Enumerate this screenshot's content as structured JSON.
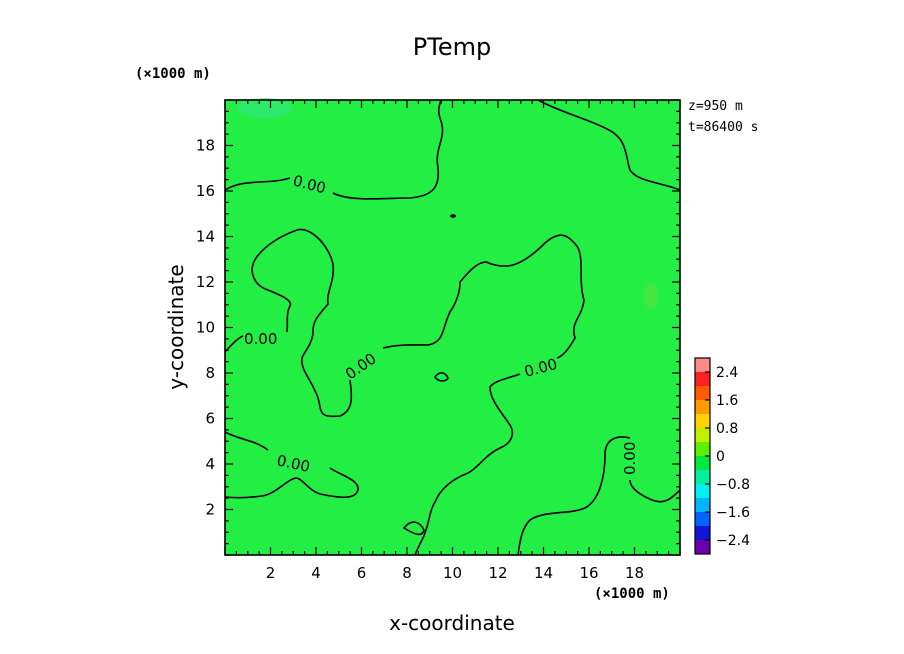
{
  "chart_data": {
    "type": "heatmap",
    "title": "PTemp",
    "xlabel": "x-coordinate",
    "ylabel": "y-coordinate",
    "x_unit": "(×1000 m)",
    "y_unit": "(×1000 m)",
    "xlim": [
      0,
      20
    ],
    "ylim": [
      0,
      20
    ],
    "x_ticks": [
      2,
      4,
      6,
      8,
      10,
      12,
      14,
      16,
      18
    ],
    "y_ticks": [
      2,
      4,
      6,
      8,
      10,
      12,
      14,
      16,
      18
    ],
    "info": [
      "z=950 m",
      "t=86400 s"
    ],
    "contour_level": 0.0,
    "contour_labels": [
      "0.00",
      "0.00",
      "0.00",
      "0.00",
      "0.00",
      "0.00"
    ],
    "field_color": "#22ee44",
    "colorbar": {
      "range": [
        -2.8,
        2.8
      ],
      "ticks": [
        2.4,
        1.6,
        0.8,
        0,
        -0.8,
        -1.6,
        -2.4
      ],
      "tick_labels": [
        "2.4",
        "1.6",
        "0.8",
        "0",
        "−0.8",
        "−1.6",
        "−2.4"
      ],
      "bands": [
        {
          "from": 2.4,
          "to": 2.8,
          "color": "#ff8a8a"
        },
        {
          "from": 2.0,
          "to": 2.4,
          "color": "#ff2020"
        },
        {
          "from": 1.6,
          "to": 2.0,
          "color": "#ff5a00"
        },
        {
          "from": 1.2,
          "to": 1.6,
          "color": "#ff9a00"
        },
        {
          "from": 0.8,
          "to": 1.2,
          "color": "#ffd400"
        },
        {
          "from": 0.4,
          "to": 0.8,
          "color": "#c0f000"
        },
        {
          "from": 0.0,
          "to": 0.4,
          "color": "#5cf000"
        },
        {
          "from": -0.4,
          "to": 0.0,
          "color": "#00e840"
        },
        {
          "from": -0.8,
          "to": -0.4,
          "color": "#00f0a0"
        },
        {
          "from": -1.2,
          "to": -0.8,
          "color": "#00f0f0"
        },
        {
          "from": -1.6,
          "to": -1.2,
          "color": "#00b4ff"
        },
        {
          "from": -2.0,
          "to": -1.6,
          "color": "#0064ff"
        },
        {
          "from": -2.4,
          "to": -2.0,
          "color": "#1414d8"
        },
        {
          "from": -2.8,
          "to": -2.4,
          "color": "#6a00b0"
        }
      ]
    }
  }
}
